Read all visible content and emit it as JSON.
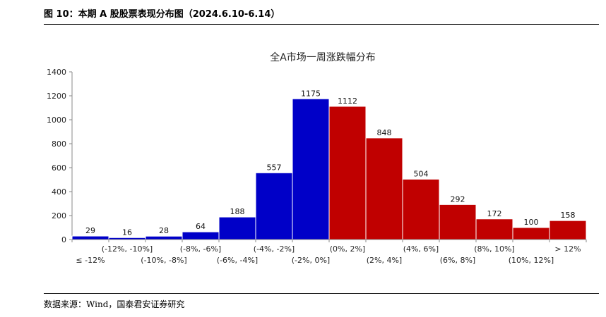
{
  "figure": {
    "title": "图 10：本期 A 股股票表现分布图（2024.6.10-6.14）",
    "source": "数据来源：Wind，国泰君安证券研究"
  },
  "chart_data": {
    "type": "bar",
    "title": "全A市场一周涨跌幅分布",
    "xlabel": "",
    "ylabel": "",
    "ylim": [
      0,
      1400
    ],
    "yticks": [
      0,
      200,
      400,
      600,
      800,
      1000,
      1200,
      1400
    ],
    "grid": false,
    "categories": [
      "≤ -12%",
      "(-12%, -10%]",
      "(-10%, -8%]",
      "(-8%, -6%]",
      "(-6%, -4%]",
      "(-4%, -2%]",
      "(-2%, 0%]",
      "(0%, 2%]",
      "(2%, 4%]",
      "(4%, 6%]",
      "(6%, 8%]",
      "(8%, 10%]",
      "(10%, 12%]",
      "> 12%"
    ],
    "values": [
      29,
      16,
      28,
      64,
      188,
      557,
      1175,
      1112,
      848,
      504,
      292,
      172,
      100,
      158
    ],
    "bar_colors": [
      "#0000C8",
      "#0000C8",
      "#0000C8",
      "#0000C8",
      "#0000C8",
      "#0000C8",
      "#0000C8",
      "#C00000",
      "#C00000",
      "#C00000",
      "#C00000",
      "#C00000",
      "#C00000",
      "#C00000"
    ]
  }
}
